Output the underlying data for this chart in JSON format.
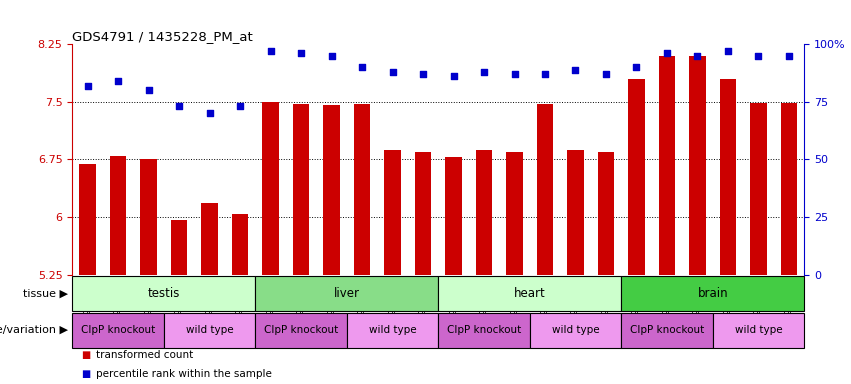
{
  "title": "GDS4791 / 1435228_PM_at",
  "samples": [
    "GSM988357",
    "GSM988358",
    "GSM988359",
    "GSM988360",
    "GSM988361",
    "GSM988362",
    "GSM988363",
    "GSM988364",
    "GSM988365",
    "GSM988366",
    "GSM988367",
    "GSM988368",
    "GSM988381",
    "GSM988382",
    "GSM988383",
    "GSM988384",
    "GSM988385",
    "GSM988386",
    "GSM988375",
    "GSM988376",
    "GSM988377",
    "GSM988378",
    "GSM988379",
    "GSM988380"
  ],
  "bar_values": [
    6.69,
    6.79,
    6.75,
    5.96,
    6.18,
    6.04,
    7.5,
    7.47,
    7.46,
    7.47,
    6.87,
    6.84,
    6.78,
    6.87,
    6.84,
    7.47,
    6.87,
    6.84,
    7.8,
    8.1,
    8.1,
    7.8,
    7.49,
    7.49
  ],
  "percentile_values": [
    82,
    84,
    80,
    73,
    70,
    73,
    97,
    96,
    95,
    90,
    88,
    87,
    86,
    88,
    87,
    87,
    89,
    87,
    90,
    96,
    95,
    97,
    95,
    95
  ],
  "bar_color": "#cc0000",
  "percentile_color": "#0000cc",
  "ylim_left": [
    5.25,
    8.25
  ],
  "ylim_right": [
    0,
    100
  ],
  "yticks_left": [
    5.25,
    6.0,
    6.75,
    7.5,
    8.25
  ],
  "yticks_right": [
    0,
    25,
    50,
    75,
    100
  ],
  "ytick_labels_left": [
    "5.25",
    "6",
    "6.75",
    "7.5",
    "8.25"
  ],
  "ytick_labels_right": [
    "0",
    "25",
    "50",
    "75",
    "100%"
  ],
  "hlines": [
    6.0,
    6.75,
    7.5
  ],
  "tissue_groups": [
    {
      "label": "testis",
      "start": 0,
      "end": 6
    },
    {
      "label": "liver",
      "start": 6,
      "end": 12
    },
    {
      "label": "heart",
      "start": 12,
      "end": 18
    },
    {
      "label": "brain",
      "start": 18,
      "end": 24
    }
  ],
  "tissue_colors": [
    "#ccffcc",
    "#88dd88",
    "#ccffcc",
    "#44cc44"
  ],
  "genotype_groups": [
    {
      "label": "ClpP knockout",
      "start": 0,
      "end": 3
    },
    {
      "label": "wild type",
      "start": 3,
      "end": 6
    },
    {
      "label": "ClpP knockout",
      "start": 6,
      "end": 9
    },
    {
      "label": "wild type",
      "start": 9,
      "end": 12
    },
    {
      "label": "ClpP knockout",
      "start": 12,
      "end": 15
    },
    {
      "label": "wild type",
      "start": 15,
      "end": 18
    },
    {
      "label": "ClpP knockout",
      "start": 18,
      "end": 21
    },
    {
      "label": "wild type",
      "start": 21,
      "end": 24
    }
  ],
  "genotype_colors": [
    "#cc66cc",
    "#ee99ee",
    "#cc66cc",
    "#ee99ee",
    "#cc66cc",
    "#ee99ee",
    "#cc66cc",
    "#ee99ee"
  ],
  "legend_bar_label": "transformed count",
  "legend_pct_label": "percentile rank within the sample",
  "tissue_row_label": "tissue",
  "genotype_row_label": "genotype/variation",
  "background_color": "#ffffff"
}
